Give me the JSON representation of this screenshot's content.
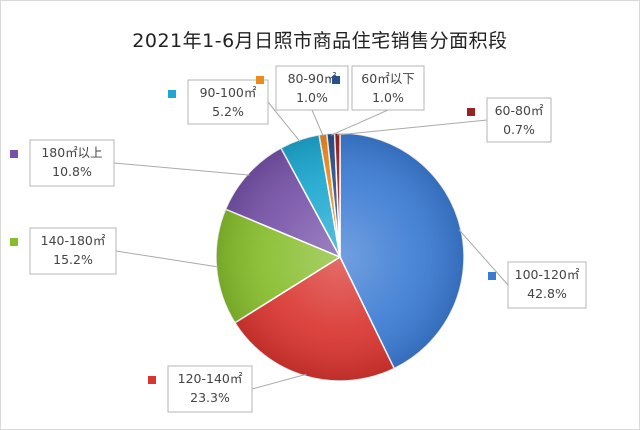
{
  "chart_data": {
    "type": "pie",
    "title": "2021年1-6月日照市商品住宅销售分面积段",
    "unit": "%",
    "slices": [
      {
        "label": "100-120㎡",
        "value": 42.8,
        "display": "42.8%",
        "color": "#3b7bd3"
      },
      {
        "label": "120-140㎡",
        "value": 23.3,
        "display": "23.3%",
        "color": "#d9342f"
      },
      {
        "label": "140-180㎡",
        "value": 15.2,
        "display": "15.2%",
        "color": "#86bd2c"
      },
      {
        "label": "180㎡以上",
        "value": 10.8,
        "display": "10.8%",
        "color": "#7652a8"
      },
      {
        "label": "90-100㎡",
        "value": 5.2,
        "display": "5.2%",
        "color": "#1ba7cf"
      },
      {
        "label": "80-90㎡",
        "value": 1.0,
        "display": "1.0%",
        "color": "#f0891e"
      },
      {
        "label": "60㎡以下",
        "value": 1.0,
        "display": "1.0%",
        "color": "#2a4f8c"
      },
      {
        "label": "60-80㎡",
        "value": 0.7,
        "display": "0.7%",
        "color": "#9b2222"
      }
    ],
    "legend": "callouts"
  }
}
